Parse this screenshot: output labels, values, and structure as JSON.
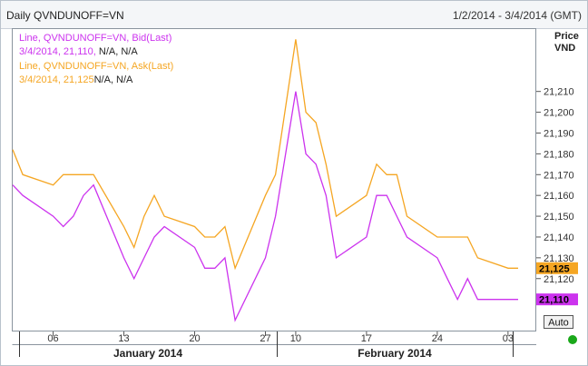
{
  "header": {
    "title": "Daily QVNDUNOFF=VN",
    "date_range": "1/2/2014 - 3/4/2014 (GMT)"
  },
  "axis_panel": {
    "price_label": "Price",
    "unit_label": "VND",
    "auto_button": "Auto"
  },
  "legend": [
    {
      "series_text": "Line, QVNDUNOFF=VN, Bid(Last)",
      "value_text": "3/4/2014, 21,110,",
      "extra_text": " N/A, N/A",
      "color": "#cc33ee"
    },
    {
      "series_text": "Line, QVNDUNOFF=VN, Ask(Last)",
      "value_text": "3/4/2014, 21,125",
      "extra_text": "N/A, N/A",
      "color": "#f5a623"
    }
  ],
  "last_value_tags": [
    {
      "text": "21,125",
      "color": "#f5a623"
    },
    {
      "text": "21,110",
      "color": "#cc33ee"
    }
  ],
  "status_indicator": {
    "color": "#1aa81a"
  },
  "chart_data": {
    "type": "line",
    "title": "Daily QVNDUNOFF=VN",
    "xlabel": "",
    "ylabel": "Price VND",
    "ylim": [
      21095,
      21240
    ],
    "yticks": [
      21120,
      21130,
      21140,
      21150,
      21160,
      21170,
      21180,
      21190,
      21200,
      21210
    ],
    "ytick_labels": [
      "21,120",
      "21,130",
      "21,140",
      "21,150",
      "21,160",
      "21,170",
      "21,180",
      "21,190",
      "21,200",
      "21,210"
    ],
    "grid": false,
    "x": [
      "2014-01-02",
      "2014-01-03",
      "2014-01-06",
      "2014-01-07",
      "2014-01-08",
      "2014-01-09",
      "2014-01-10",
      "2014-01-13",
      "2014-01-14",
      "2014-01-15",
      "2014-01-16",
      "2014-01-17",
      "2014-01-20",
      "2014-01-21",
      "2014-01-22",
      "2014-01-23",
      "2014-01-24",
      "2014-01-27",
      "2014-01-28",
      "2014-02-10",
      "2014-02-11",
      "2014-02-12",
      "2014-02-13",
      "2014-02-14",
      "2014-02-17",
      "2014-02-18",
      "2014-02-19",
      "2014-02-20",
      "2014-02-21",
      "2014-02-24",
      "2014-02-25",
      "2014-02-26",
      "2014-02-27",
      "2014-02-28",
      "2014-03-03",
      "2014-03-04"
    ],
    "x_tick_labels": [
      "06",
      "13",
      "20",
      "27",
      "10",
      "17",
      "24",
      "03"
    ],
    "x_tick_dates": [
      "2014-01-06",
      "2014-01-13",
      "2014-01-20",
      "2014-01-27",
      "2014-02-10",
      "2014-02-17",
      "2014-02-24",
      "2014-03-03"
    ],
    "month_labels": [
      "January 2014",
      "February 2014"
    ],
    "series": [
      {
        "name": "Bid(Last)",
        "color": "#cc33ee",
        "values": [
          21165,
          21160,
          21150,
          21145,
          21150,
          21160,
          21165,
          21130,
          21120,
          21130,
          21140,
          21145,
          21135,
          21125,
          21125,
          21130,
          21100,
          21130,
          21150,
          21210,
          21180,
          21175,
          21160,
          21130,
          21140,
          21160,
          21160,
          21150,
          21140,
          21130,
          21120,
          21110,
          21120,
          21110,
          21110,
          21110
        ]
      },
      {
        "name": "Ask(Last)",
        "color": "#f5a623",
        "values": [
          21182,
          21170,
          21165,
          21170,
          21170,
          21170,
          21170,
          21145,
          21135,
          21150,
          21160,
          21150,
          21145,
          21140,
          21140,
          21145,
          21125,
          21160,
          21170,
          21235,
          21200,
          21195,
          21175,
          21150,
          21160,
          21175,
          21170,
          21170,
          21150,
          21140,
          21140,
          21140,
          21140,
          21130,
          21125,
          21125
        ]
      }
    ]
  }
}
